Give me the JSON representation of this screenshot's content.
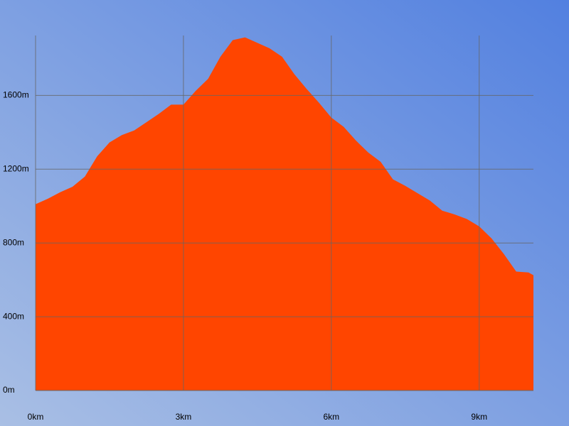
{
  "chart_data": {
    "type": "area",
    "color": "#ff4500",
    "grid": true,
    "x": [
      0,
      0.25,
      0.5,
      0.75,
      1.0,
      1.25,
      1.5,
      1.75,
      2.0,
      2.25,
      2.5,
      2.75,
      3.0,
      3.25,
      3.5,
      3.75,
      4.0,
      4.25,
      4.5,
      4.75,
      5.0,
      5.25,
      5.5,
      5.75,
      6.0,
      6.25,
      6.5,
      6.75,
      7.0,
      7.25,
      7.5,
      7.75,
      8.0,
      8.25,
      8.5,
      8.75,
      9.0,
      9.25,
      9.5,
      9.75,
      10.0,
      10.1
    ],
    "values": [
      1010,
      1040,
      1075,
      1105,
      1160,
      1270,
      1345,
      1385,
      1410,
      1455,
      1500,
      1550,
      1550,
      1625,
      1690,
      1810,
      1900,
      1915,
      1885,
      1855,
      1810,
      1715,
      1635,
      1560,
      1480,
      1430,
      1355,
      1290,
      1240,
      1145,
      1110,
      1070,
      1030,
      975,
      955,
      930,
      890,
      825,
      740,
      645,
      640,
      625
    ],
    "xlim": [
      0,
      10.1
    ],
    "ylim": [
      0,
      1925
    ],
    "xticks": [
      {
        "value": 0,
        "label": "0km"
      },
      {
        "value": 3,
        "label": "3km"
      },
      {
        "value": 6,
        "label": "6km"
      },
      {
        "value": 9,
        "label": "9km"
      }
    ],
    "yticks": [
      {
        "value": 0,
        "label": "0m"
      },
      {
        "value": 400,
        "label": "400m"
      },
      {
        "value": 800,
        "label": "800m"
      },
      {
        "value": 1200,
        "label": "1200m"
      },
      {
        "value": 1600,
        "label": "1600m"
      }
    ]
  }
}
